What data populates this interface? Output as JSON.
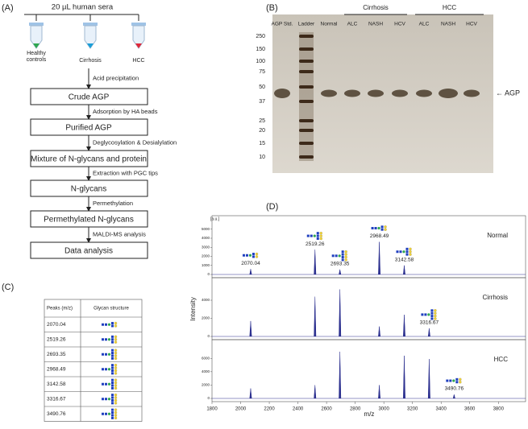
{
  "panel_a": {
    "label": "(A)",
    "sample": "20 µL human sera",
    "groups": [
      "Healthy controls",
      "Cirrhosis",
      "HCC"
    ],
    "steps": [
      "Crude AGP",
      "Purified AGP",
      "Mixture of N-glycans and protein",
      "N-glycans",
      "Permethylated N-glycans",
      "Data analysis"
    ],
    "transitions": [
      "Acid precipitation",
      "Adsorption by HA beads",
      "Deglycosylation & Desialylation",
      "Extraction with PGC tips",
      "Permethylation",
      "MALDI-MS analysis"
    ]
  },
  "panel_b": {
    "label": "(B)",
    "lanes": [
      "AGP Std.",
      "Ladder",
      "Normal",
      "ALC",
      "NASH",
      "HCV",
      "ALC",
      "NASH",
      "HCV"
    ],
    "groups": [
      "Cirrhosis",
      "HCC"
    ],
    "mw": [
      250,
      150,
      100,
      75,
      50,
      37,
      25,
      20,
      15,
      10
    ],
    "band": "← AGP"
  },
  "panel_c": {
    "label": "(C)",
    "header": [
      "Peaks (m/z)",
      "Glycan structure"
    ],
    "rows": [
      "2070.04",
      "2519.26",
      "2693.35",
      "2968.49",
      "3142.58",
      "3316.67",
      "3490.76"
    ]
  },
  "panel_d": {
    "label": "(D)",
    "unit": "[a.u.]",
    "ylabel": "Intensity",
    "xlabel": "m/z",
    "color": "#2b2f8f",
    "xlim": [
      1800,
      3990
    ],
    "xticks": [
      1800,
      2000,
      2200,
      2400,
      2600,
      2800,
      3000,
      3200,
      3400,
      3600,
      3800
    ],
    "spectra": [
      {
        "name": "Normal",
        "ylim": [
          0,
          5600
        ],
        "yticks": [
          0,
          1000,
          2000,
          3000,
          4000,
          5000
        ],
        "peaks": [
          {
            "mz": 2070.04,
            "intensity": 600,
            "label": true
          },
          {
            "mz": 2519.26,
            "intensity": 2750,
            "label": true
          },
          {
            "mz": 2693.35,
            "intensity": 550,
            "label": true
          },
          {
            "mz": 2968.49,
            "intensity": 3600,
            "label": true
          },
          {
            "mz": 3142.58,
            "intensity": 1000,
            "label": true
          }
        ]
      },
      {
        "name": "Cirrhosis",
        "ylim": [
          0,
          5600
        ],
        "yticks": [
          0,
          2000,
          4000
        ],
        "peaks": [
          {
            "mz": 2070.04,
            "intensity": 1700,
            "label": false
          },
          {
            "mz": 2519.26,
            "intensity": 4400,
            "label": false
          },
          {
            "mz": 2693.35,
            "intensity": 5200,
            "label": false
          },
          {
            "mz": 2968.49,
            "intensity": 1100,
            "label": false
          },
          {
            "mz": 3142.58,
            "intensity": 2400,
            "label": false
          },
          {
            "mz": 3316.67,
            "intensity": 900,
            "label": true
          }
        ]
      },
      {
        "name": "HCC",
        "ylim": [
          0,
          7600
        ],
        "yticks": [
          0,
          2000,
          4000,
          6000
        ],
        "peaks": [
          {
            "mz": 2070.04,
            "intensity": 1500,
            "label": false
          },
          {
            "mz": 2519.26,
            "intensity": 2000,
            "label": false
          },
          {
            "mz": 2693.35,
            "intensity": 7000,
            "label": false
          },
          {
            "mz": 2968.49,
            "intensity": 2000,
            "label": false
          },
          {
            "mz": 3142.58,
            "intensity": 6400,
            "label": false
          },
          {
            "mz": 3316.67,
            "intensity": 5900,
            "label": false
          },
          {
            "mz": 3490.76,
            "intensity": 600,
            "label": true
          }
        ]
      }
    ]
  }
}
